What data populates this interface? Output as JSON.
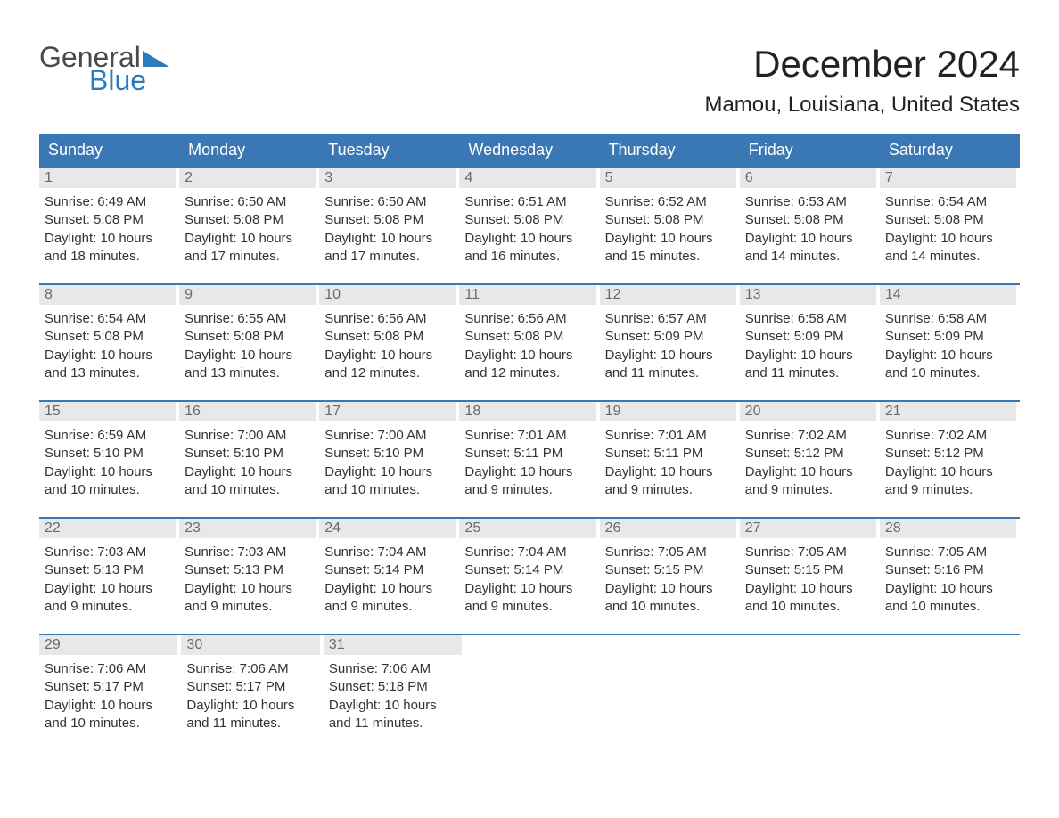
{
  "brand": {
    "text1": "General",
    "text2": "Blue",
    "color_general": "#4a4a4a",
    "color_blue": "#2b7bbf",
    "arrow_color": "#2b7bbf"
  },
  "title": "December 2024",
  "location": "Mamou, Louisiana, United States",
  "header_bg": "#3a78b5",
  "daynum_bg": "#e8e8e8",
  "week_border": "#3a78b5",
  "day_headers": [
    "Sunday",
    "Monday",
    "Tuesday",
    "Wednesday",
    "Thursday",
    "Friday",
    "Saturday"
  ],
  "weeks": [
    [
      {
        "n": "1",
        "sunrise": "6:49 AM",
        "sunset": "5:08 PM",
        "daylight": "10 hours and 18 minutes."
      },
      {
        "n": "2",
        "sunrise": "6:50 AM",
        "sunset": "5:08 PM",
        "daylight": "10 hours and 17 minutes."
      },
      {
        "n": "3",
        "sunrise": "6:50 AM",
        "sunset": "5:08 PM",
        "daylight": "10 hours and 17 minutes."
      },
      {
        "n": "4",
        "sunrise": "6:51 AM",
        "sunset": "5:08 PM",
        "daylight": "10 hours and 16 minutes."
      },
      {
        "n": "5",
        "sunrise": "6:52 AM",
        "sunset": "5:08 PM",
        "daylight": "10 hours and 15 minutes."
      },
      {
        "n": "6",
        "sunrise": "6:53 AM",
        "sunset": "5:08 PM",
        "daylight": "10 hours and 14 minutes."
      },
      {
        "n": "7",
        "sunrise": "6:54 AM",
        "sunset": "5:08 PM",
        "daylight": "10 hours and 14 minutes."
      }
    ],
    [
      {
        "n": "8",
        "sunrise": "6:54 AM",
        "sunset": "5:08 PM",
        "daylight": "10 hours and 13 minutes."
      },
      {
        "n": "9",
        "sunrise": "6:55 AM",
        "sunset": "5:08 PM",
        "daylight": "10 hours and 13 minutes."
      },
      {
        "n": "10",
        "sunrise": "6:56 AM",
        "sunset": "5:08 PM",
        "daylight": "10 hours and 12 minutes."
      },
      {
        "n": "11",
        "sunrise": "6:56 AM",
        "sunset": "5:08 PM",
        "daylight": "10 hours and 12 minutes."
      },
      {
        "n": "12",
        "sunrise": "6:57 AM",
        "sunset": "5:09 PM",
        "daylight": "10 hours and 11 minutes."
      },
      {
        "n": "13",
        "sunrise": "6:58 AM",
        "sunset": "5:09 PM",
        "daylight": "10 hours and 11 minutes."
      },
      {
        "n": "14",
        "sunrise": "6:58 AM",
        "sunset": "5:09 PM",
        "daylight": "10 hours and 10 minutes."
      }
    ],
    [
      {
        "n": "15",
        "sunrise": "6:59 AM",
        "sunset": "5:10 PM",
        "daylight": "10 hours and 10 minutes."
      },
      {
        "n": "16",
        "sunrise": "7:00 AM",
        "sunset": "5:10 PM",
        "daylight": "10 hours and 10 minutes."
      },
      {
        "n": "17",
        "sunrise": "7:00 AM",
        "sunset": "5:10 PM",
        "daylight": "10 hours and 10 minutes."
      },
      {
        "n": "18",
        "sunrise": "7:01 AM",
        "sunset": "5:11 PM",
        "daylight": "10 hours and 9 minutes."
      },
      {
        "n": "19",
        "sunrise": "7:01 AM",
        "sunset": "5:11 PM",
        "daylight": "10 hours and 9 minutes."
      },
      {
        "n": "20",
        "sunrise": "7:02 AM",
        "sunset": "5:12 PM",
        "daylight": "10 hours and 9 minutes."
      },
      {
        "n": "21",
        "sunrise": "7:02 AM",
        "sunset": "5:12 PM",
        "daylight": "10 hours and 9 minutes."
      }
    ],
    [
      {
        "n": "22",
        "sunrise": "7:03 AM",
        "sunset": "5:13 PM",
        "daylight": "10 hours and 9 minutes."
      },
      {
        "n": "23",
        "sunrise": "7:03 AM",
        "sunset": "5:13 PM",
        "daylight": "10 hours and 9 minutes."
      },
      {
        "n": "24",
        "sunrise": "7:04 AM",
        "sunset": "5:14 PM",
        "daylight": "10 hours and 9 minutes."
      },
      {
        "n": "25",
        "sunrise": "7:04 AM",
        "sunset": "5:14 PM",
        "daylight": "10 hours and 9 minutes."
      },
      {
        "n": "26",
        "sunrise": "7:05 AM",
        "sunset": "5:15 PM",
        "daylight": "10 hours and 10 minutes."
      },
      {
        "n": "27",
        "sunrise": "7:05 AM",
        "sunset": "5:15 PM",
        "daylight": "10 hours and 10 minutes."
      },
      {
        "n": "28",
        "sunrise": "7:05 AM",
        "sunset": "5:16 PM",
        "daylight": "10 hours and 10 minutes."
      }
    ],
    [
      {
        "n": "29",
        "sunrise": "7:06 AM",
        "sunset": "5:17 PM",
        "daylight": "10 hours and 10 minutes."
      },
      {
        "n": "30",
        "sunrise": "7:06 AM",
        "sunset": "5:17 PM",
        "daylight": "10 hours and 11 minutes."
      },
      {
        "n": "31",
        "sunrise": "7:06 AM",
        "sunset": "5:18 PM",
        "daylight": "10 hours and 11 minutes."
      },
      null,
      null,
      null,
      null
    ]
  ],
  "labels": {
    "sunrise": "Sunrise: ",
    "sunset": "Sunset: ",
    "daylight": "Daylight: "
  }
}
